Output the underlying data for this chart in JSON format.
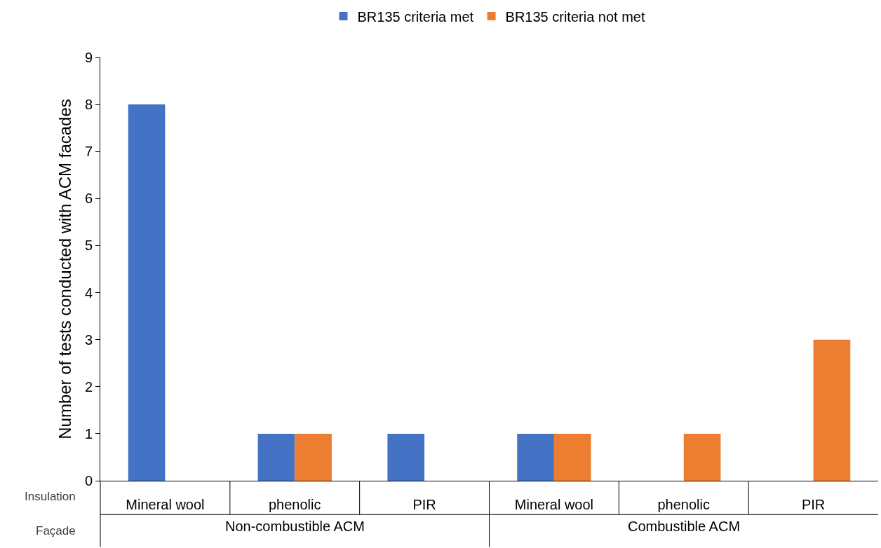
{
  "chart_data": {
    "type": "bar",
    "categories": [
      "Mineral wool",
      "phenolic",
      "PIR",
      "Mineral wool",
      "phenolic",
      "PIR"
    ],
    "ylabel": "Number of tests conducted with ACM facades",
    "series": [
      {
        "name": "BR135 criteria met",
        "color": "#4472c4",
        "values": [
          8,
          1,
          1,
          1,
          0,
          0
        ]
      },
      {
        "name": "BR135 criteria not met",
        "color": "#ed7d31",
        "values": [
          0,
          1,
          0,
          1,
          1,
          3
        ]
      }
    ],
    "ylim": [
      0,
      9
    ],
    "yticks": [
      0,
      1,
      2,
      3,
      4,
      5,
      6,
      7,
      8,
      9
    ],
    "annotations": [
      "Insulation",
      "Façade",
      "Non-combustible ACM",
      "Combustible ACM"
    ],
    "legend": "top"
  }
}
